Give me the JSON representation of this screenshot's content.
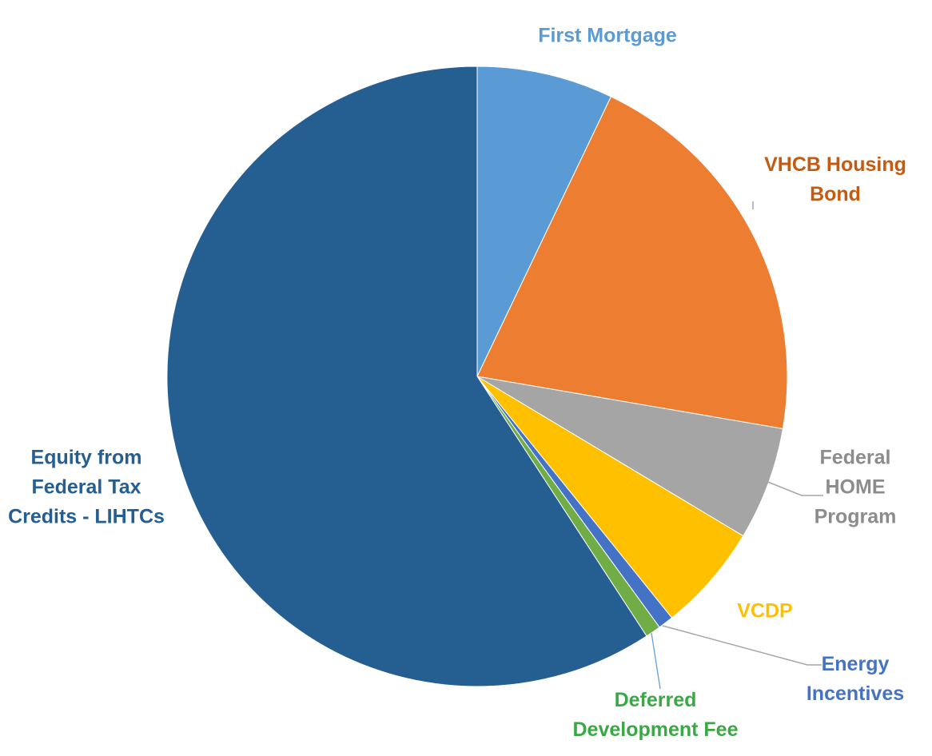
{
  "chart_data": {
    "type": "pie",
    "categories": [
      "First Mortgage",
      "VHCB Housing Bond",
      "Federal HOME Program",
      "VCDP",
      "Energy Incentives",
      "Deferred Development Fee",
      "Equity from Federal Tax Credits - LIHTCs"
    ],
    "values": [
      7.1,
      20.6,
      5.9,
      5.6,
      0.8,
      0.8,
      59.2
    ],
    "colors": [
      "#5b9bd5",
      "#ed7d31",
      "#a5a5a5",
      "#ffc000",
      "#4472c4",
      "#70ad47",
      "#255e91"
    ],
    "label_colors": [
      "#5b9bd5",
      "#c55a11",
      "#8c8c8c",
      "#ffc000",
      "#4472c4",
      "#3aa845",
      "#255e91"
    ]
  }
}
